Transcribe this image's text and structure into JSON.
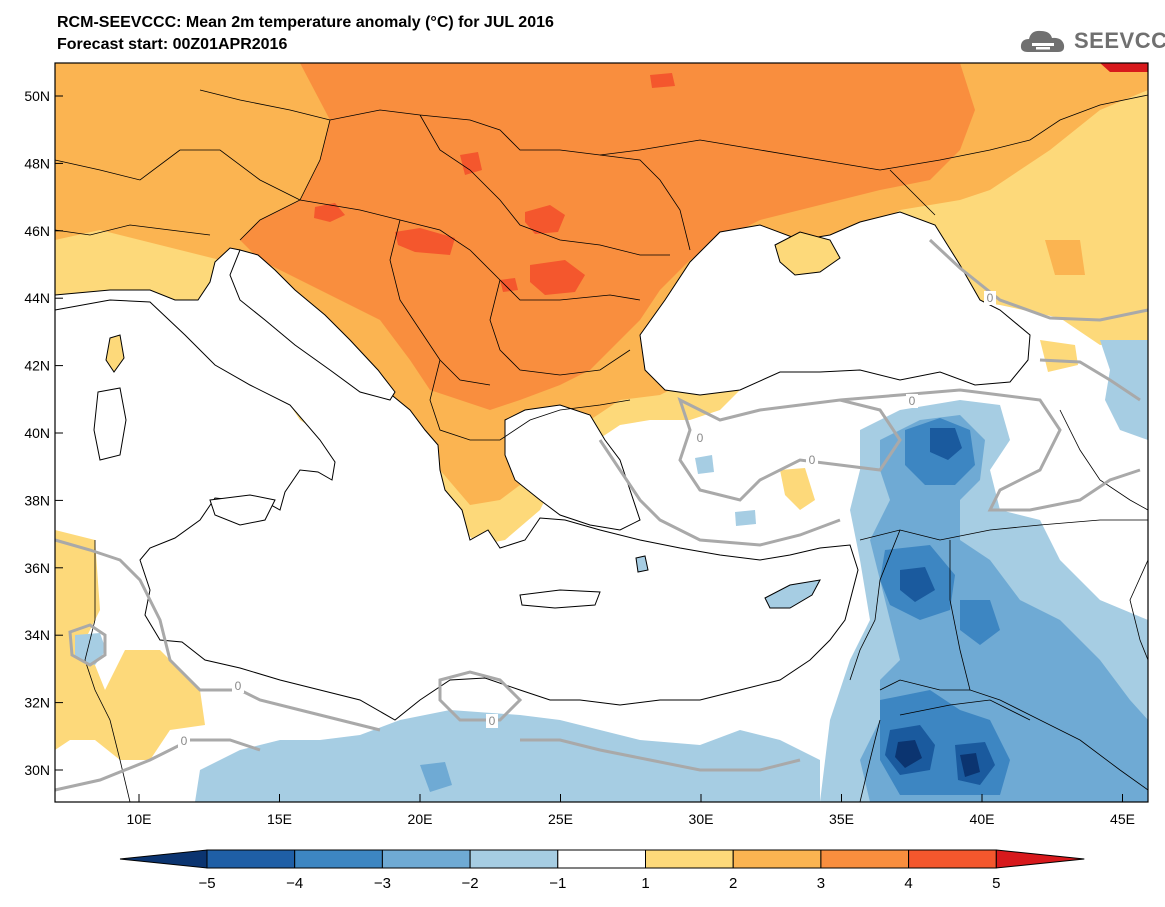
{
  "header": {
    "title": "RCM-SEEVCCC: Mean 2m temperature anomaly (°C) for JUL 2016",
    "subtitle": "Forecast start: 00Z01APR2016",
    "logo_text": "SEEVCCC",
    "logo_icon": "cloud-logo-icon"
  },
  "map": {
    "lat_labels": [
      "50N",
      "48N",
      "46N",
      "44N",
      "42N",
      "40N",
      "38N",
      "36N",
      "34N",
      "32N",
      "30N"
    ],
    "lon_labels": [
      "10E",
      "15E",
      "20E",
      "25E",
      "30E",
      "35E",
      "40E",
      "45E"
    ],
    "contour_labels": [
      "0",
      "0",
      "0",
      "0",
      "0",
      "0",
      "0"
    ],
    "colors": {
      "a1": "#fdd97a",
      "a2": "#fbb451",
      "a3": "#f98e3e",
      "a4": "#f4572d",
      "a5": "#d7191c",
      "c1": "#a6cde3",
      "c2": "#6faad4",
      "c3": "#3d86c2",
      "c4": "#1a5a9e",
      "c5": "#0b3470",
      "coast": "#000000",
      "contour": "#a9a9a9"
    }
  },
  "colorbar": {
    "tick_labels": [
      "−5",
      "−4",
      "−3",
      "−2",
      "−1",
      "1",
      "2",
      "3",
      "4",
      "5"
    ],
    "bins": [
      "#0b3470",
      "#1f5fa6",
      "#3d86c2",
      "#6faad4",
      "#a6cde3",
      "#ffffff",
      "#fdd97a",
      "#fbb451",
      "#f98e3e",
      "#f4572d",
      "#d7191c"
    ]
  }
}
